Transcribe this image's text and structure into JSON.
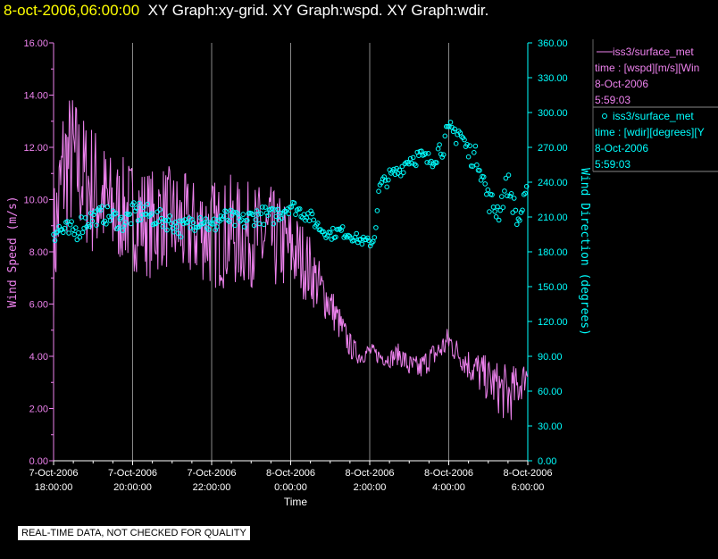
{
  "header": {
    "timestamp": "8-oct-2006,06:00:00",
    "title": "XY Graph:xy-grid.  XY Graph:wspd.  XY Graph:wdir."
  },
  "notice": "REAL-TIME DATA, NOT CHECKED FOR QUALITY",
  "colors": {
    "wspd": "#ee82ee",
    "wdir": "#00ffff",
    "axis_left": "#ee82ee",
    "axis_right": "#00ffff",
    "grid": "#888888"
  },
  "chart_data": {
    "type": "line",
    "xlabel": "Time",
    "ylabel_left": "Wind Speed (m/s)",
    "ylabel_right": "Wind Direction (degrees)",
    "xlim_hours": [
      -12,
      0
    ],
    "x_ticks": [
      {
        "h": -12,
        "line1": "7-Oct-2006",
        "line2": "18:00:00"
      },
      {
        "h": -10,
        "line1": "7-Oct-2006",
        "line2": "20:00:00"
      },
      {
        "h": -8,
        "line1": "7-Oct-2006",
        "line2": "22:00:00"
      },
      {
        "h": -6,
        "line1": "8-Oct-2006",
        "line2": "0:00:00"
      },
      {
        "h": -4,
        "line1": "8-Oct-2006",
        "line2": "2:00:00"
      },
      {
        "h": -2,
        "line1": "8-Oct-2006",
        "line2": "4:00:00"
      },
      {
        "h": 0,
        "line1": "8-Oct-2006",
        "line2": "6:00:00"
      }
    ],
    "ylim_left": [
      0,
      16
    ],
    "y_ticks_left": [
      "0.00",
      "2.00",
      "4.00",
      "6.00",
      "8.00",
      "10.00",
      "12.00",
      "14.00",
      "16.00"
    ],
    "ylim_right": [
      0,
      360
    ],
    "y_ticks_right": [
      "0.00",
      "30.00",
      "60.00",
      "90.00",
      "120.00",
      "150.00",
      "180.00",
      "210.00",
      "240.00",
      "270.00",
      "300.00",
      "330.00",
      "360.00"
    ],
    "legend": [
      {
        "marker": "line",
        "name": "iss3/surface_met",
        "line2": "time : [wspd][m/s][Win",
        "line3": "8-Oct-2006",
        "line4": "5:59:03"
      },
      {
        "marker": "circle",
        "name": "iss3/surface_met",
        "line2": "time : [wdir][degrees][Y",
        "line3": "8-Oct-2006",
        "line4": "5:59:03"
      }
    ],
    "series": [
      {
        "name": "wspd",
        "axis": "left",
        "style": "line",
        "x": [
          -12.0,
          -11.75,
          -11.5,
          -11.25,
          -11.0,
          -10.75,
          -10.5,
          -10.25,
          -10.0,
          -9.75,
          -9.5,
          -9.25,
          -9.0,
          -8.75,
          -8.5,
          -8.25,
          -8.0,
          -7.75,
          -7.5,
          -7.25,
          -7.0,
          -6.75,
          -6.5,
          -6.25,
          -6.0,
          -5.75,
          -5.5,
          -5.25,
          -5.0,
          -4.75,
          -4.5,
          -4.25,
          -4.0,
          -3.75,
          -3.5,
          -3.25,
          -3.0,
          -2.75,
          -2.5,
          -2.25,
          -2.0,
          -1.75,
          -1.5,
          -1.25,
          -1.0,
          -0.75,
          -0.5,
          -0.25,
          0.0
        ],
        "y": [
          8.0,
          11.2,
          11.5,
          10.8,
          10.4,
          10.0,
          9.5,
          9.6,
          9.4,
          9.3,
          9.0,
          9.4,
          9.2,
          8.9,
          8.8,
          8.9,
          8.7,
          8.6,
          8.8,
          8.6,
          8.7,
          8.4,
          8.5,
          8.3,
          8.1,
          7.8,
          7.3,
          6.6,
          6.0,
          5.2,
          4.4,
          4.0,
          4.2,
          4.0,
          3.9,
          4.1,
          3.6,
          3.5,
          3.9,
          4.2,
          4.6,
          4.1,
          3.7,
          3.4,
          3.1,
          2.8,
          2.5,
          2.8,
          3.4
        ],
        "spread": [
          1.5,
          1.8,
          1.6,
          1.5,
          1.6,
          1.4,
          1.3,
          1.2,
          1.3,
          1.2,
          1.3,
          1.2,
          1.2,
          1.3,
          1.2,
          1.2,
          1.3,
          1.2,
          1.3,
          1.2,
          1.2,
          1.3,
          1.2,
          1.1,
          1.0,
          0.9,
          0.8,
          0.6,
          0.5,
          0.4,
          0.3,
          0.2,
          0.2,
          0.2,
          0.2,
          0.25,
          0.3,
          0.3,
          0.3,
          0.3,
          0.35,
          0.3,
          0.4,
          0.5,
          0.5,
          0.6,
          0.7,
          0.5,
          0.3
        ]
      },
      {
        "name": "wdir",
        "axis": "right",
        "style": "circle",
        "x": [
          -12.0,
          -11.75,
          -11.5,
          -11.25,
          -11.0,
          -10.75,
          -10.5,
          -10.25,
          -10.0,
          -9.75,
          -9.5,
          -9.25,
          -9.0,
          -8.75,
          -8.5,
          -8.25,
          -8.0,
          -7.75,
          -7.5,
          -7.25,
          -7.0,
          -6.75,
          -6.5,
          -6.25,
          -6.0,
          -5.75,
          -5.5,
          -5.25,
          -5.0,
          -4.75,
          -4.5,
          -4.25,
          -4.0,
          -3.9,
          -3.75,
          -3.5,
          -3.25,
          -3.0,
          -2.75,
          -2.5,
          -2.25,
          -2.0,
          -1.75,
          -1.5,
          -1.25,
          -1.0,
          -0.75,
          -0.5,
          -0.25,
          0.0
        ],
        "y": [
          200,
          198,
          196,
          205,
          210,
          212,
          210,
          205,
          212,
          215,
          210,
          208,
          205,
          200,
          205,
          210,
          200,
          210,
          208,
          205,
          210,
          212,
          210,
          215,
          220,
          215,
          210,
          200,
          195,
          198,
          195,
          190,
          188,
          190,
          235,
          245,
          250,
          260,
          262,
          258,
          268,
          280,
          285,
          265,
          260,
          225,
          215,
          240,
          205,
          232
        ],
        "spread": [
          12,
          10,
          10,
          10,
          8,
          8,
          8,
          8,
          10,
          10,
          8,
          8,
          8,
          8,
          8,
          8,
          8,
          8,
          8,
          8,
          8,
          8,
          8,
          8,
          6,
          6,
          6,
          5,
          5,
          5,
          5,
          4,
          4,
          8,
          8,
          6,
          6,
          6,
          8,
          8,
          10,
          12,
          12,
          10,
          10,
          10,
          12,
          10,
          10,
          8
        ]
      }
    ]
  }
}
